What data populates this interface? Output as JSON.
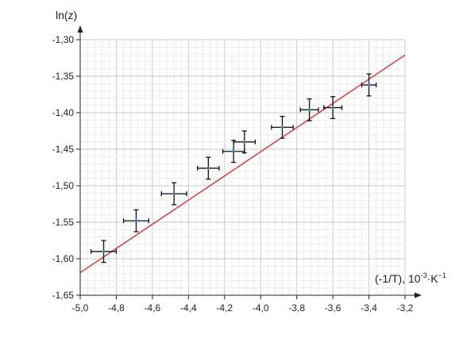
{
  "chart_data": {
    "type": "scatter",
    "title": "",
    "xlabel": "(-1/T), 10",
    "xlabel_exponent": "-3",
    "xlabel_units": "·K",
    "xlabel_units_exponent": "−1",
    "ylabel": "ln(z)",
    "xlim": [
      -5.0,
      -3.2
    ],
    "ylim": [
      -1.65,
      -1.3
    ],
    "x_ticks": [
      "-5,0",
      "-4,8",
      "-4,6",
      "-4,4",
      "-4,2",
      "-4,0",
      "-3,8",
      "-3,6",
      "-3,4",
      "-3,2"
    ],
    "y_ticks": [
      "-1,30",
      "-1,35",
      "-1,40",
      "-1,45",
      "-1,50",
      "-1,55",
      "-1,60",
      "-1,65"
    ],
    "grid": true,
    "legend": "none",
    "colors": {
      "points": "#3a82c4",
      "error_bars": "#111111",
      "fit_line": "#e02020",
      "grid_major": "#c8c8c8",
      "grid_minor": "#ececec"
    },
    "series": [
      {
        "values": [
          {
            "x": -4.87,
            "y": -1.59,
            "x_err": 0.07,
            "y_err": 0.015
          },
          {
            "x": -4.69,
            "y": -1.548,
            "x_err": 0.07,
            "y_err": 0.015
          },
          {
            "x": -4.48,
            "y": -1.511,
            "x_err": 0.07,
            "y_err": 0.015
          },
          {
            "x": -4.29,
            "y": -1.476,
            "x_err": 0.06,
            "y_err": 0.015
          },
          {
            "x": -4.15,
            "y": -1.453,
            "x_err": 0.06,
            "y_err": 0.015
          },
          {
            "x": -4.09,
            "y": -1.44,
            "x_err": 0.06,
            "y_err": 0.015
          },
          {
            "x": -3.88,
            "y": -1.42,
            "x_err": 0.06,
            "y_err": 0.015
          },
          {
            "x": -3.73,
            "y": -1.396,
            "x_err": 0.05,
            "y_err": 0.015
          },
          {
            "x": -3.6,
            "y": -1.393,
            "x_err": 0.05,
            "y_err": 0.015
          },
          {
            "x": -3.4,
            "y": -1.362,
            "x_err": 0.04,
            "y_err": 0.015
          }
        ]
      }
    ],
    "fit_line": {
      "x": [
        -5.0,
        -3.2
      ],
      "y": [
        -1.619,
        -1.321
      ]
    }
  }
}
